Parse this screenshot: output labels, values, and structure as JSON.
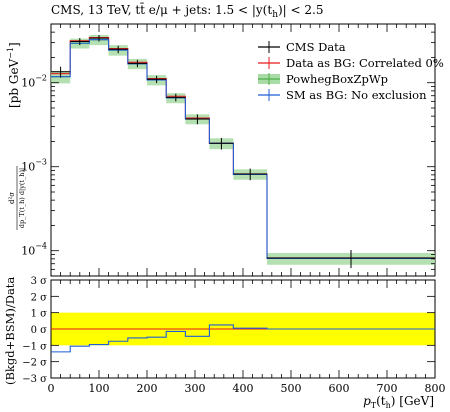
{
  "chart_data": {
    "type": "line",
    "title_prefix": "CMS, 13 TeV, t",
    "title_mid": "t̄ e/μ + jets: 1.5 < |y(t",
    "title_suffix": ")| < 2.5",
    "title_sub": "h",
    "xlabel": "p",
    "xlabel_sub": "T",
    "xlabel_paren": "(t",
    "xlabel_paren_sub": "h",
    "xlabel_unit": ") [GeV]",
    "ylabel": "[pb GeV",
    "ylabel_sup": "−1",
    "ylabel_close": "]",
    "ylabel_frac_num": "d²σ",
    "ylabel_frac_den": "dp_T(t_h) d|y(t_h)|",
    "ratio_ylabel": "(Bkgd+BSM)/Data",
    "xscale": "linear",
    "yscale": "log",
    "xlim": [
      0,
      800
    ],
    "ylim": [
      5e-05,
      0.05
    ],
    "x_ticks": [
      "0",
      "100",
      "200",
      "300",
      "400",
      "500",
      "600",
      "700",
      "800"
    ],
    "y_ticks": [
      {
        "base": "10",
        "exp": "−4",
        "value": 0.0001
      },
      {
        "base": "10",
        "exp": "−3",
        "value": 0.001
      },
      {
        "base": "10",
        "exp": "−2",
        "value": 0.01
      }
    ],
    "bin_edges": [
      0,
      40,
      80,
      120,
      160,
      200,
      240,
      280,
      330,
      380,
      450,
      800
    ],
    "series": [
      {
        "name": "CMS Data",
        "color": "#000000",
        "style": "points",
        "values": [
          0.0135,
          0.031,
          0.034,
          0.025,
          0.017,
          0.011,
          0.0067,
          0.0037,
          0.0019,
          0.00082,
          8.2e-05
        ],
        "errors": [
          0.002,
          0.003,
          0.003,
          0.0025,
          0.0017,
          0.0011,
          0.0007,
          0.0005,
          0.0003,
          0.00013,
          2e-05
        ]
      },
      {
        "name": "Data as BG: Correlated 0%",
        "color": "#e41a1c",
        "style": "step",
        "values": [
          0.0128,
          0.0315,
          0.0345,
          0.0255,
          0.0175,
          0.0112,
          0.0069,
          0.0038,
          0.0019,
          0.00082,
          8.2e-05
        ]
      },
      {
        "name": "PowhegBoxZpWp",
        "color": "#4daf4a",
        "style": "band",
        "values": [
          0.0118,
          0.0295,
          0.0325,
          0.0245,
          0.0168,
          0.0108,
          0.0066,
          0.0037,
          0.0019,
          0.00081,
          8.1e-05
        ],
        "band_low": [
          0.0098,
          0.0255,
          0.028,
          0.021,
          0.0145,
          0.0093,
          0.0057,
          0.0032,
          0.00162,
          0.0007,
          6.8e-05
        ],
        "band_high": [
          0.0138,
          0.0335,
          0.037,
          0.028,
          0.0192,
          0.0123,
          0.0075,
          0.0042,
          0.00218,
          0.00093,
          9.4e-05
        ]
      },
      {
        "name": "SM as BG: No exclusion",
        "color": "#1f5fd6",
        "style": "step",
        "values": [
          0.0118,
          0.0295,
          0.0325,
          0.0245,
          0.0168,
          0.0108,
          0.0066,
          0.0037,
          0.0019,
          0.00081,
          8.1e-05
        ]
      }
    ],
    "ratio": {
      "ylim": [
        -3,
        3
      ],
      "y_ticks": [
        "3 σ",
        "2 σ",
        "1 σ",
        "0 σ",
        "−1 σ",
        "−2 σ",
        "−3 σ"
      ],
      "band_sigma": 1,
      "band_color": "#ffff00",
      "red_values": [
        0,
        0,
        0,
        0,
        0,
        0,
        0,
        0,
        0,
        0,
        0
      ],
      "blue_values": [
        -1.4,
        -1.05,
        -0.95,
        -0.75,
        -0.55,
        -0.5,
        -0.15,
        -0.45,
        0.25,
        0.05,
        0.0
      ]
    },
    "legend_position": "top-right",
    "grid": false
  }
}
